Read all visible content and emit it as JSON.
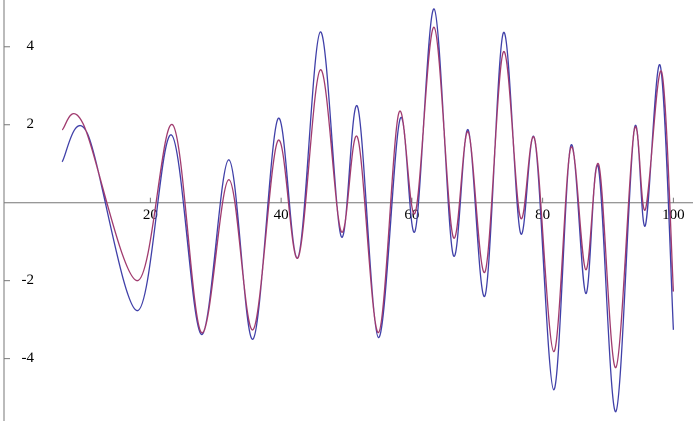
{
  "chart_data": {
    "type": "line",
    "xlim": [
      -3,
      103
    ],
    "ylim": [
      -5.6,
      5.2
    ],
    "xticks": [
      20,
      40,
      60,
      80,
      100
    ],
    "yticks": [
      -4,
      -2,
      2,
      4
    ],
    "series": [
      {
        "color": "#3f3fa8",
        "x": [
          6.5,
          10.3,
          18,
          23.2,
          27.8,
          32,
          35.7,
          39.5,
          42.6,
          46,
          49.2,
          51.7,
          54.9,
          58.2,
          60.5,
          63.4,
          66.3,
          68.6,
          71.2,
          74,
          76.6,
          78.8,
          81.7,
          84.3,
          86.6,
          88.5,
          91.2,
          94,
          95.7,
          98,
          100
        ],
        "values": [
          1.05,
          1.8,
          -2.77,
          1.74,
          -3.38,
          1.1,
          -3.5,
          2.15,
          -1.4,
          4.38,
          -0.87,
          2.46,
          -3.46,
          2.15,
          -0.72,
          4.97,
          -1.33,
          1.87,
          -2.38,
          4.36,
          -0.77,
          1.62,
          -4.8,
          1.46,
          -2.33,
          0.92,
          -5.36,
          1.87,
          -0.59,
          3.51,
          -3.26
        ]
      },
      {
        "color": "#a03a6e",
        "x": [
          6.5,
          9.7,
          18,
          23.4,
          27.8,
          32,
          35.7,
          39.5,
          42.6,
          46,
          49.2,
          51.7,
          54.9,
          58,
          60.5,
          63.4,
          66.3,
          68.6,
          71.2,
          74,
          76.6,
          78.8,
          81.7,
          84.3,
          86.6,
          88.6,
          91.2,
          94,
          95.7,
          98.2,
          100
        ],
        "values": [
          1.87,
          2.03,
          -2.0,
          2.0,
          -3.33,
          0.59,
          -3.26,
          1.59,
          -1.41,
          3.41,
          -0.74,
          1.67,
          -3.33,
          2.3,
          -0.26,
          4.5,
          -0.87,
          1.82,
          -1.77,
          3.87,
          -0.38,
          1.62,
          -3.82,
          1.41,
          -1.72,
          0.97,
          -4.23,
          1.85,
          -0.18,
          3.36,
          -2.28
        ]
      }
    ]
  }
}
